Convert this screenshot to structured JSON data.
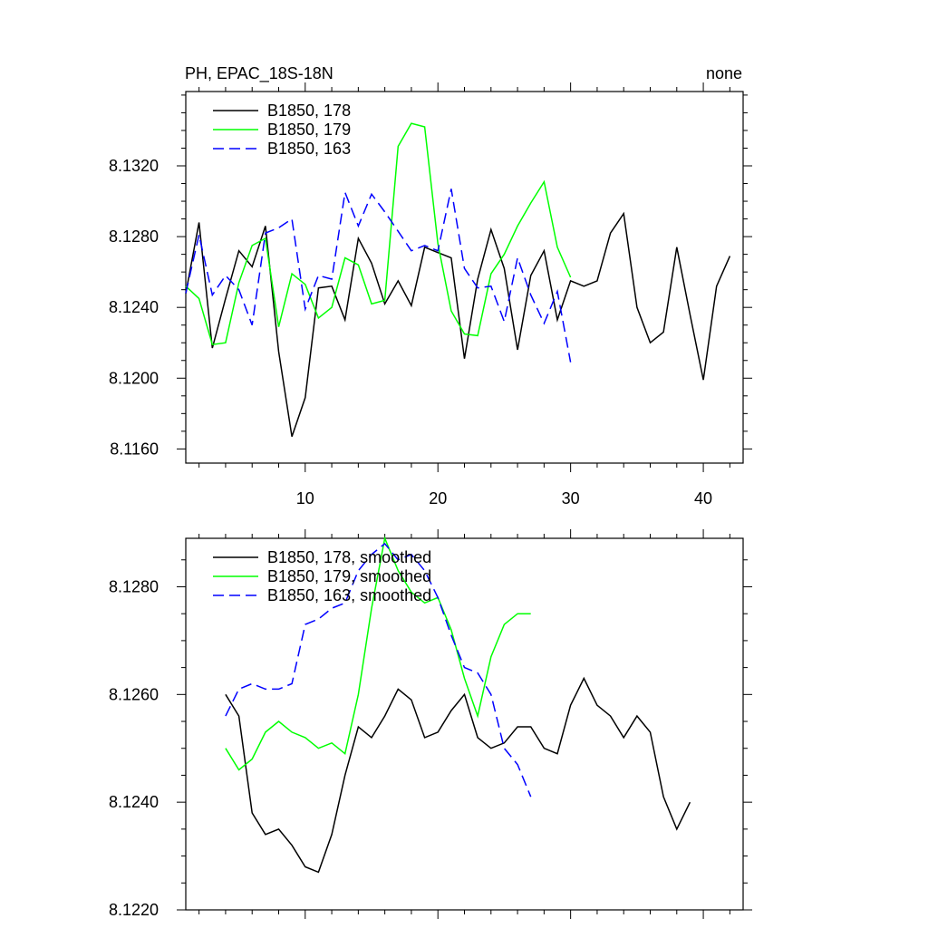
{
  "chart_data": [
    {
      "type": "line",
      "title": "PH, EPAC_18S-18N",
      "right_title": "none",
      "xlim": [
        1,
        43
      ],
      "ylim": [
        8.1152,
        8.1362
      ],
      "x_ticks": [
        10,
        20,
        30,
        40
      ],
      "x_tick_labels": [
        "10",
        "20",
        "30",
        "40"
      ],
      "y_ticks": [
        8.116,
        8.12,
        8.124,
        8.128,
        8.132
      ],
      "y_tick_labels": [
        "8.1160",
        "8.1200",
        "8.1240",
        "8.1280",
        "8.1320"
      ],
      "legend_position": "top-left",
      "series": [
        {
          "name": "B1850, 178",
          "color": "#000000",
          "dash": "solid",
          "x": [
            1,
            2,
            3,
            4,
            5,
            6,
            7,
            8,
            9,
            10,
            11,
            12,
            13,
            14,
            15,
            16,
            17,
            18,
            19,
            20,
            21,
            22,
            23,
            24,
            25,
            26,
            27,
            28,
            29,
            30,
            31,
            32,
            33,
            34,
            35,
            36,
            37,
            38,
            39,
            40,
            41,
            42
          ],
          "values": [
            8.1248,
            8.1288,
            8.1217,
            8.1245,
            8.1272,
            8.1263,
            8.1286,
            8.1215,
            8.1167,
            8.1189,
            8.1251,
            8.1252,
            8.1233,
            8.1279,
            8.1265,
            8.1242,
            8.1255,
            8.1241,
            8.1274,
            8.1271,
            8.1268,
            8.1211,
            8.1256,
            8.1284,
            8.1262,
            8.1216,
            8.1258,
            8.1272,
            8.1233,
            8.1255,
            8.1252,
            8.1255,
            8.1282,
            8.1293,
            8.124,
            8.122,
            8.1226,
            8.1274,
            8.1236,
            8.1199,
            8.1252,
            8.1269
          ]
        },
        {
          "name": "B1850, 179",
          "color": "#00ff00",
          "dash": "solid",
          "x": [
            1,
            2,
            3,
            4,
            5,
            6,
            7,
            8,
            9,
            10,
            11,
            12,
            13,
            14,
            15,
            16,
            17,
            18,
            19,
            20,
            21,
            22,
            23,
            24,
            25,
            26,
            27,
            28,
            29,
            30
          ],
          "values": [
            8.1252,
            8.1245,
            8.1219,
            8.122,
            8.1254,
            8.1275,
            8.1279,
            8.1229,
            8.1259,
            8.1253,
            8.1234,
            8.124,
            8.1268,
            8.1264,
            8.1242,
            8.1244,
            8.1331,
            8.1344,
            8.1342,
            8.1276,
            8.1238,
            8.1225,
            8.1224,
            8.1259,
            8.127,
            8.1286,
            8.1299,
            8.1311,
            8.1274,
            8.1257
          ]
        },
        {
          "name": "B1850, 163",
          "color": "#0000ff",
          "dash": "dashed",
          "x": [
            1,
            2,
            3,
            4,
            5,
            6,
            7,
            8,
            9,
            10,
            11,
            12,
            13,
            14,
            15,
            16,
            17,
            18,
            19,
            20,
            21,
            22,
            23,
            24,
            25,
            26,
            27,
            28,
            29,
            30
          ],
          "values": [
            8.1248,
            8.1281,
            8.1247,
            8.1258,
            8.125,
            8.123,
            8.1282,
            8.1285,
            8.129,
            8.1239,
            8.1258,
            8.1256,
            8.1305,
            8.1286,
            8.1304,
            8.1294,
            8.1283,
            8.1272,
            8.1275,
            8.1272,
            8.1307,
            8.1262,
            8.1251,
            8.1252,
            8.1232,
            8.1268,
            8.1247,
            8.1231,
            8.1249,
            8.1209
          ]
        }
      ]
    },
    {
      "type": "line",
      "title": "",
      "xlim": [
        1,
        43
      ],
      "ylim": [
        8.122,
        8.1289
      ],
      "x_ticks": [
        10,
        20,
        30,
        40
      ],
      "x_tick_labels": [],
      "y_ticks": [
        8.122,
        8.124,
        8.126,
        8.128
      ],
      "y_tick_labels": [
        "8.1220",
        "8.1240",
        "8.1260",
        "8.1280"
      ],
      "legend_position": "top-left",
      "series": [
        {
          "name": "B1850, 178, smoothed",
          "color": "#000000",
          "dash": "solid",
          "x": [
            4,
            5,
            6,
            7,
            8,
            9,
            10,
            11,
            12,
            13,
            14,
            15,
            16,
            17,
            18,
            19,
            20,
            21,
            22,
            23,
            24,
            25,
            26,
            27,
            28,
            29,
            30,
            31,
            32,
            33,
            34,
            35,
            36,
            37,
            38,
            39
          ],
          "values": [
            8.126,
            8.1256,
            8.1238,
            8.1234,
            8.1235,
            8.1232,
            8.1228,
            8.1227,
            8.1234,
            8.1245,
            8.1254,
            8.1252,
            8.1256,
            8.1261,
            8.1259,
            8.1252,
            8.1253,
            8.1257,
            8.126,
            8.1252,
            8.125,
            8.1251,
            8.1254,
            8.1254,
            8.125,
            8.1249,
            8.1258,
            8.1263,
            8.1258,
            8.1256,
            8.1252,
            8.1256,
            8.1253,
            8.1241,
            8.1235,
            8.124
          ]
        },
        {
          "name": "B1850, 179, smoothed",
          "color": "#00ff00",
          "dash": "solid",
          "x": [
            4,
            5,
            6,
            7,
            8,
            9,
            10,
            11,
            12,
            13,
            14,
            15,
            16,
            17,
            18,
            19,
            20,
            21,
            22,
            23,
            24,
            25,
            26,
            27
          ],
          "values": [
            8.125,
            8.1246,
            8.1248,
            8.1253,
            8.1255,
            8.1253,
            8.1252,
            8.125,
            8.1251,
            8.1249,
            8.126,
            8.1276,
            8.1289,
            8.1283,
            8.1279,
            8.1277,
            8.1278,
            8.1272,
            8.1263,
            8.1256,
            8.1267,
            8.1273,
            8.1275,
            8.1275
          ]
        },
        {
          "name": "B1850, 163, smoothed",
          "color": "#0000ff",
          "dash": "dashed",
          "x": [
            4,
            5,
            6,
            7,
            8,
            9,
            10,
            11,
            12,
            13,
            14,
            15,
            16,
            17,
            18,
            19,
            20,
            21,
            22,
            23,
            24,
            25,
            26,
            27
          ],
          "values": [
            8.1256,
            8.1261,
            8.1262,
            8.1261,
            8.1261,
            8.1262,
            8.1273,
            8.1274,
            8.1276,
            8.1277,
            8.1283,
            8.1286,
            8.1288,
            8.1285,
            8.1286,
            8.1283,
            8.1278,
            8.1271,
            8.1265,
            8.1264,
            8.126,
            8.125,
            8.1247,
            8.1241
          ]
        }
      ]
    }
  ]
}
